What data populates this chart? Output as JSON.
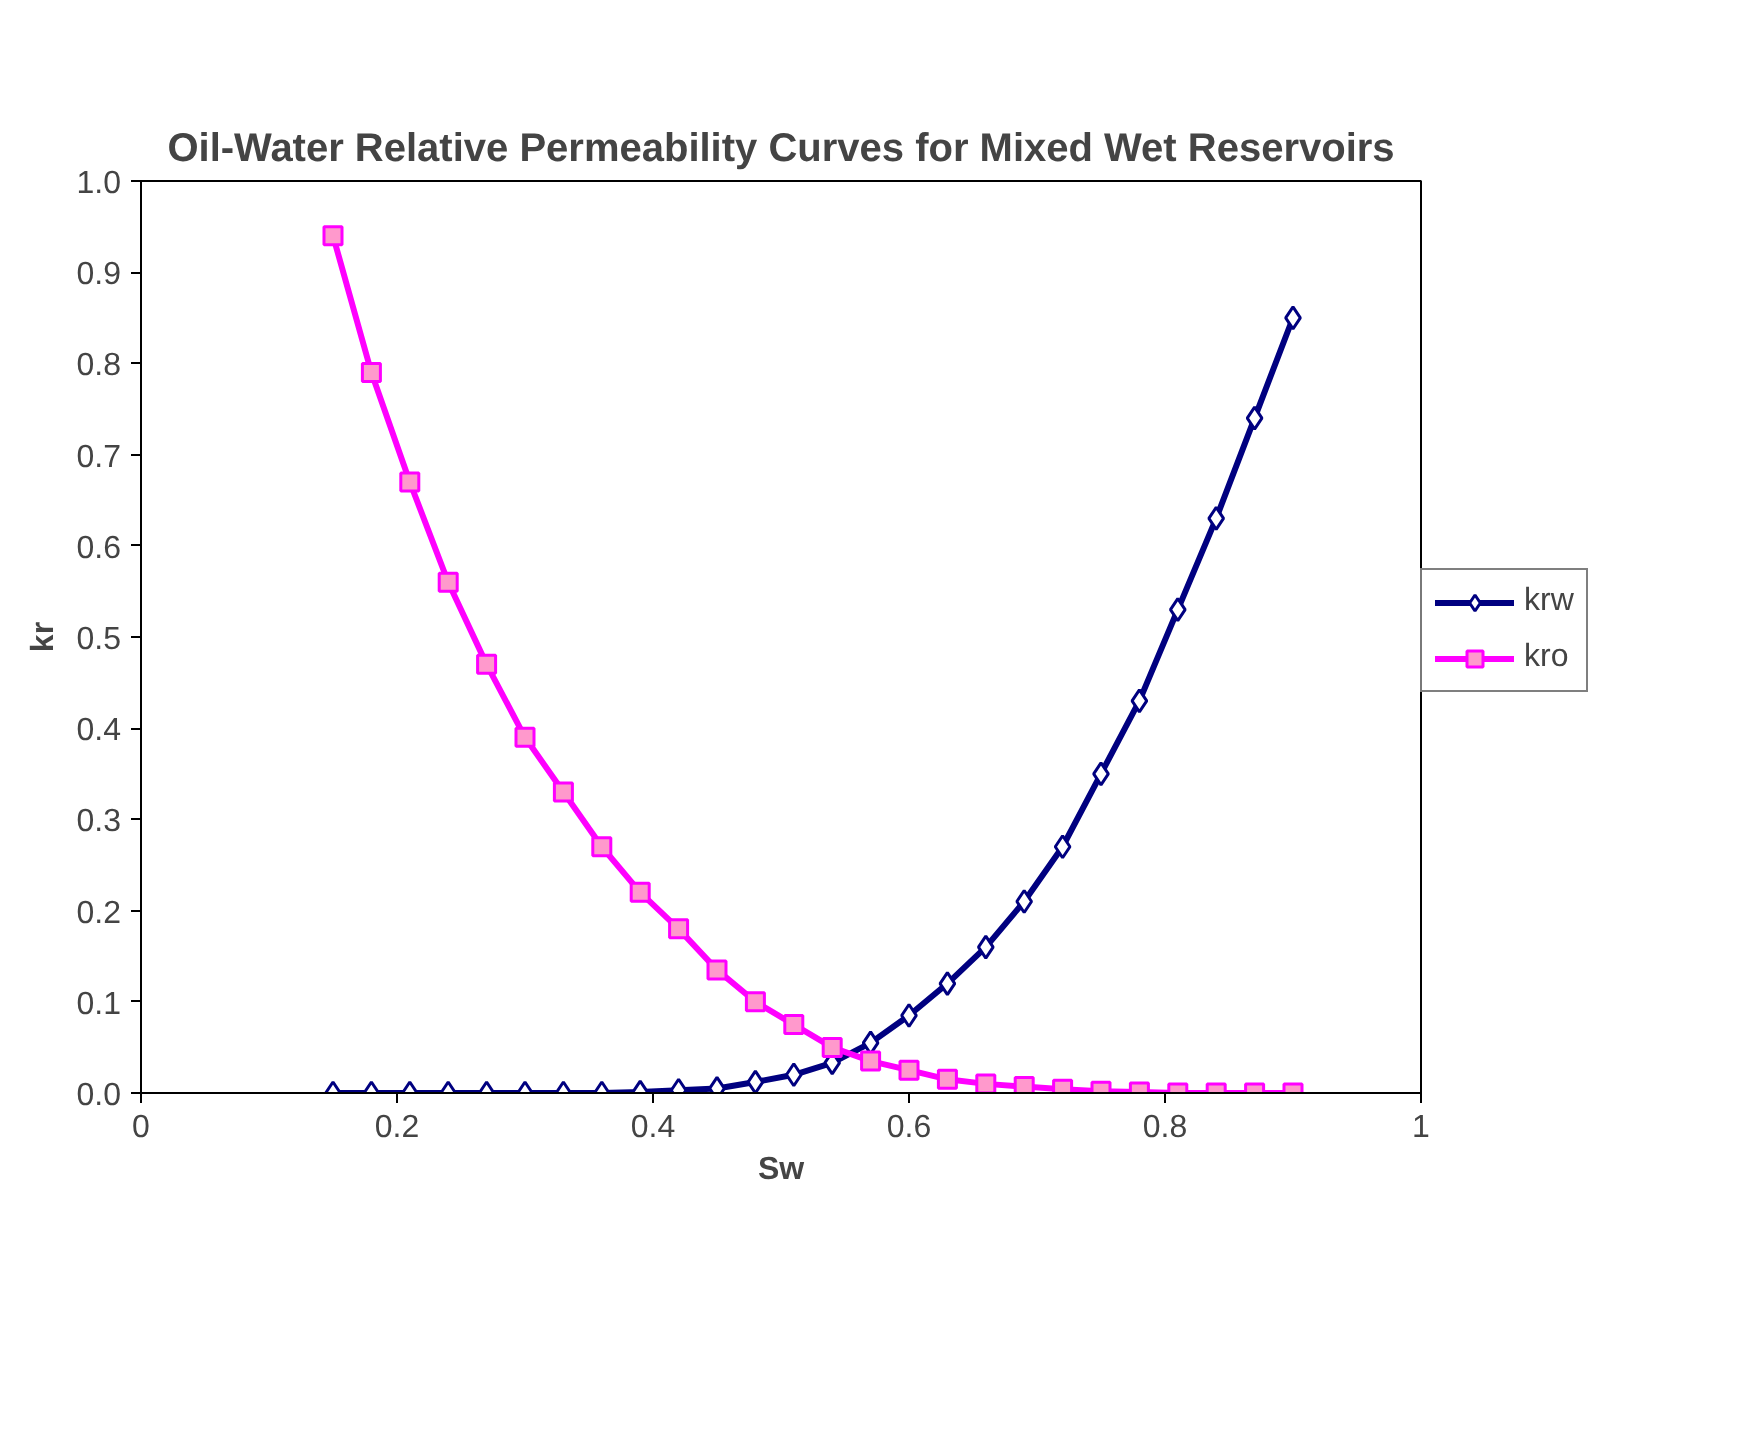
{
  "chart_data": {
    "type": "line",
    "title": "Oil-Water Relative Permeability Curves for Mixed Wet Reservoirs",
    "xlabel": "Sw",
    "ylabel": "kr",
    "x": [
      0.15,
      0.18,
      0.21,
      0.24,
      0.27,
      0.3,
      0.33,
      0.36,
      0.39,
      0.42,
      0.45,
      0.48,
      0.51,
      0.54,
      0.57,
      0.6,
      0.63,
      0.66,
      0.69,
      0.72,
      0.75,
      0.78,
      0.81,
      0.84,
      0.87,
      0.9
    ],
    "series": [
      {
        "name": "krw",
        "color": "#000080",
        "marker": "diamond",
        "values": [
          0,
          0,
          0,
          0,
          0,
          0,
          0,
          0,
          0.001,
          0.003,
          0.005,
          0.012,
          0.02,
          0.033,
          0.055,
          0.085,
          0.12,
          0.16,
          0.21,
          0.27,
          0.35,
          0.43,
          0.53,
          0.63,
          0.74,
          0.85
        ]
      },
      {
        "name": "kro",
        "color": "#ff00ff",
        "marker": "square",
        "values": [
          0.94,
          0.79,
          0.67,
          0.56,
          0.47,
          0.39,
          0.33,
          0.27,
          0.22,
          0.18,
          0.135,
          0.1,
          0.075,
          0.05,
          0.035,
          0.025,
          0.015,
          0.01,
          0.007,
          0.004,
          0.002,
          0.001,
          0,
          0,
          0,
          0
        ]
      }
    ],
    "xlim": [
      0,
      1
    ],
    "xticks": [
      0,
      0.2,
      0.4,
      0.6,
      0.8,
      1
    ],
    "ylim": [
      0,
      1
    ],
    "yticks": [
      {
        "value": 0,
        "label": "0.0"
      },
      0.1,
      0.2,
      0.3,
      0.4,
      0.5,
      0.6,
      0.7,
      0.8,
      0.9,
      {
        "value": 1,
        "label": "1.0"
      }
    ],
    "grid": false,
    "legend": "right",
    "line_style": "solid"
  }
}
